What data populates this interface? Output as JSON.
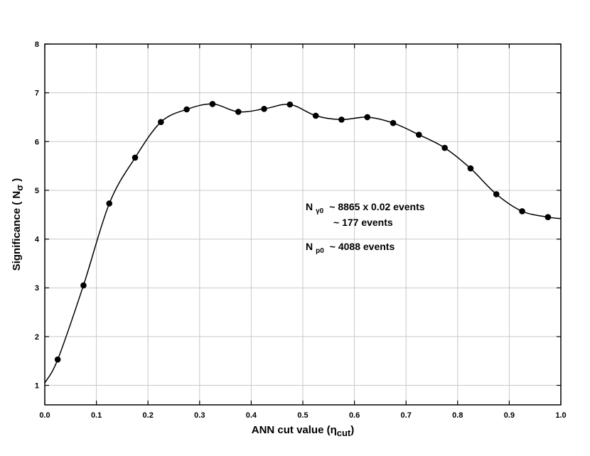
{
  "chart_data": {
    "type": "line",
    "title": "",
    "xlabel_main": "ANN  cut value  (",
    "xlabel_symbol": "η",
    "xlabel_sub": "cut",
    "xlabel_close": ")",
    "ylabel_main": "Significance  ( N",
    "ylabel_sub": "σ",
    "ylabel_close": " )",
    "xlim": [
      0.0,
      1.0
    ],
    "ylim": [
      0.6,
      8.0
    ],
    "grid": true,
    "x_ticks": [
      0.0,
      0.1,
      0.2,
      0.3,
      0.4,
      0.5,
      0.6,
      0.7,
      0.8,
      0.9,
      1.0
    ],
    "x_tick_labels": [
      "0.0",
      "0.1",
      "0.2",
      "0.3",
      "0.4",
      "0.5",
      "0.6",
      "0.7",
      "0.8",
      "0.9",
      "1.0"
    ],
    "y_ticks": [
      1,
      2,
      3,
      4,
      5,
      6,
      7,
      8
    ],
    "y_tick_labels": [
      "1",
      "2",
      "3",
      "4",
      "5",
      "6",
      "7",
      "8"
    ],
    "series": [
      {
        "x": [
          0.025,
          0.075,
          0.125,
          0.175,
          0.225,
          0.275,
          0.325,
          0.375,
          0.425,
          0.475,
          0.525,
          0.575,
          0.625,
          0.675,
          0.725,
          0.775,
          0.825,
          0.875,
          0.925,
          0.975
        ],
        "y": [
          1.53,
          3.05,
          4.73,
          5.67,
          6.4,
          6.66,
          6.77,
          6.61,
          6.67,
          6.76,
          6.53,
          6.45,
          6.5,
          6.38,
          6.14,
          5.87,
          5.45,
          4.92,
          4.57,
          4.45
        ],
        "curve_start": [
          0.0,
          1.05
        ],
        "curve_end": [
          1.0,
          4.42
        ]
      }
    ],
    "annotations": {
      "line1_N": "N",
      "line1_sub": "γ0",
      "line1_text": "~  8865 x 0.02  events",
      "line2_text": "~ 177  events",
      "line3_N": "N",
      "line3_sub": "p0",
      "line3_text": "~  4088  events"
    }
  }
}
